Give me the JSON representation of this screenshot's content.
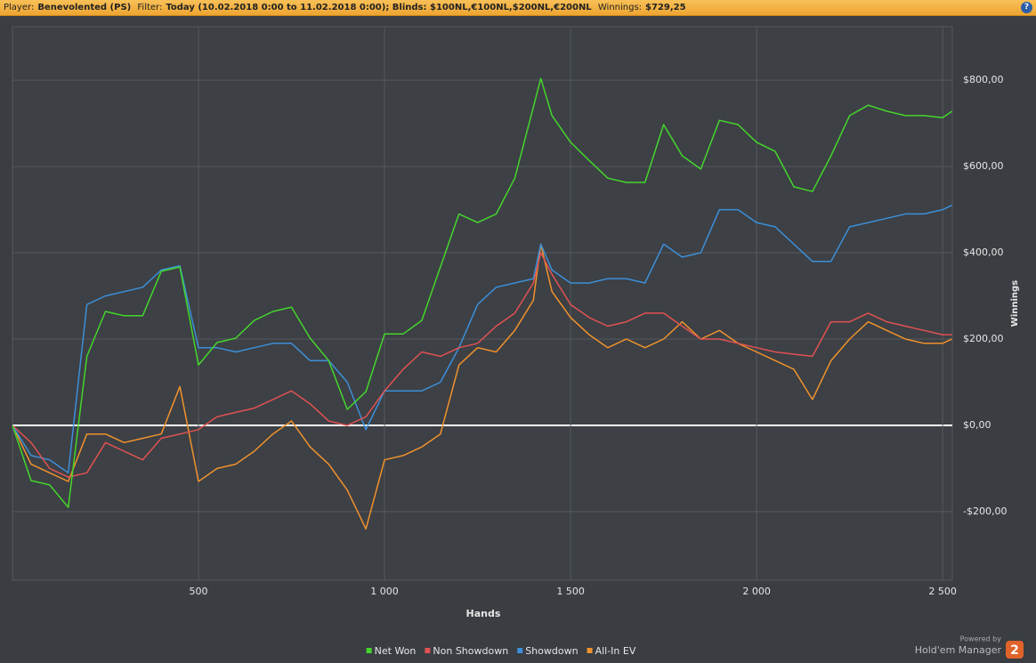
{
  "header": {
    "player_label": "Player:",
    "player": "Benevolented (PS)",
    "filter_label": "Filter:",
    "filter": "Today (10.02.2018 0:00 to 11.02.2018 0:00); Blinds: $100NL,€100NL,$200NL,€200NL",
    "winnings_label": "Winnings:",
    "winnings": "$729,25",
    "help": "?"
  },
  "footer": {
    "powered_by": "Powered by",
    "product": "Hold'em Manager",
    "version": "2"
  },
  "chart_data": {
    "type": "line",
    "x_label": "Hands",
    "y_label": "Winnings",
    "x": [
      0,
      50,
      100,
      150,
      200,
      250,
      300,
      350,
      400,
      450,
      500,
      550,
      600,
      650,
      700,
      750,
      800,
      850,
      900,
      950,
      1000,
      1050,
      1100,
      1150,
      1200,
      1250,
      1300,
      1350,
      1400,
      1420,
      1450,
      1500,
      1550,
      1600,
      1650,
      1700,
      1750,
      1800,
      1850,
      1900,
      1950,
      2000,
      2050,
      2100,
      2150,
      2200,
      2250,
      2300,
      2350,
      2400,
      2450,
      2500,
      2525
    ],
    "series": [
      {
        "name": "Net Won",
        "color": "#44d62c",
        "values": [
          0,
          -128,
          -138,
          -190,
          160,
          264,
          254,
          254,
          357,
          367,
          140,
          192,
          202,
          243,
          264,
          274,
          202,
          150,
          37,
          78,
          212,
          212,
          243,
          367,
          490,
          470,
          490,
          573,
          738,
          804,
          718,
          656,
          614,
          573,
          563,
          563,
          697,
          625,
          594,
          707,
          697,
          656,
          635,
          553,
          542,
          625,
          718,
          742,
          728,
          718,
          718,
          713,
          728
        ]
      },
      {
        "name": "Non Showdown",
        "color": "#e05252",
        "values": [
          0,
          -40,
          -100,
          -120,
          -110,
          -40,
          -60,
          -80,
          -30,
          -20,
          -10,
          20,
          30,
          40,
          60,
          80,
          50,
          10,
          0,
          20,
          80,
          130,
          170,
          160,
          180,
          190,
          230,
          260,
          330,
          400,
          350,
          280,
          250,
          230,
          240,
          260,
          260,
          230,
          200,
          200,
          190,
          180,
          170,
          165,
          160,
          240,
          240,
          260,
          240,
          230,
          220,
          210,
          210
        ]
      },
      {
        "name": "Showdown",
        "color": "#3c8fd8",
        "values": [
          0,
          -70,
          -80,
          -110,
          280,
          300,
          310,
          320,
          360,
          370,
          180,
          180,
          170,
          180,
          190,
          190,
          150,
          150,
          100,
          -10,
          80,
          80,
          80,
          100,
          180,
          280,
          320,
          330,
          340,
          420,
          360,
          330,
          330,
          340,
          340,
          330,
          420,
          390,
          400,
          500,
          500,
          470,
          460,
          420,
          380,
          380,
          460,
          470,
          480,
          490,
          490,
          500,
          510
        ]
      },
      {
        "name": "All-In EV",
        "color": "#f0922c",
        "values": [
          0,
          -90,
          -110,
          -130,
          -20,
          -20,
          -40,
          -30,
          -20,
          90,
          -130,
          -100,
          -90,
          -60,
          -20,
          10,
          -50,
          -90,
          -150,
          -240,
          -80,
          -70,
          -50,
          -20,
          140,
          180,
          170,
          220,
          290,
          420,
          310,
          250,
          210,
          180,
          200,
          180,
          200,
          240,
          200,
          220,
          190,
          170,
          150,
          130,
          60,
          150,
          200,
          240,
          220,
          200,
          190,
          190,
          200
        ]
      }
    ],
    "xlim": [
      0,
      2526
    ],
    "ylim": [
      -359,
      924
    ],
    "xticks": [
      500,
      {
        "value": 1000,
        "label": "1 000"
      },
      {
        "value": 1500,
        "label": "1 500"
      },
      {
        "value": 2000,
        "label": "2 000"
      },
      {
        "value": 2500,
        "label": "2 500"
      }
    ],
    "yticks": [
      {
        "value": -200,
        "label": "-$200,00"
      },
      {
        "value": 0,
        "label": "$0,00"
      },
      {
        "value": 200,
        "label": "$200,00"
      },
      {
        "value": 400,
        "label": "$400,00"
      },
      {
        "value": 600,
        "label": "$600,00"
      },
      {
        "value": 800,
        "label": "$800,00"
      }
    ],
    "grid": true,
    "legend": "bottom"
  }
}
